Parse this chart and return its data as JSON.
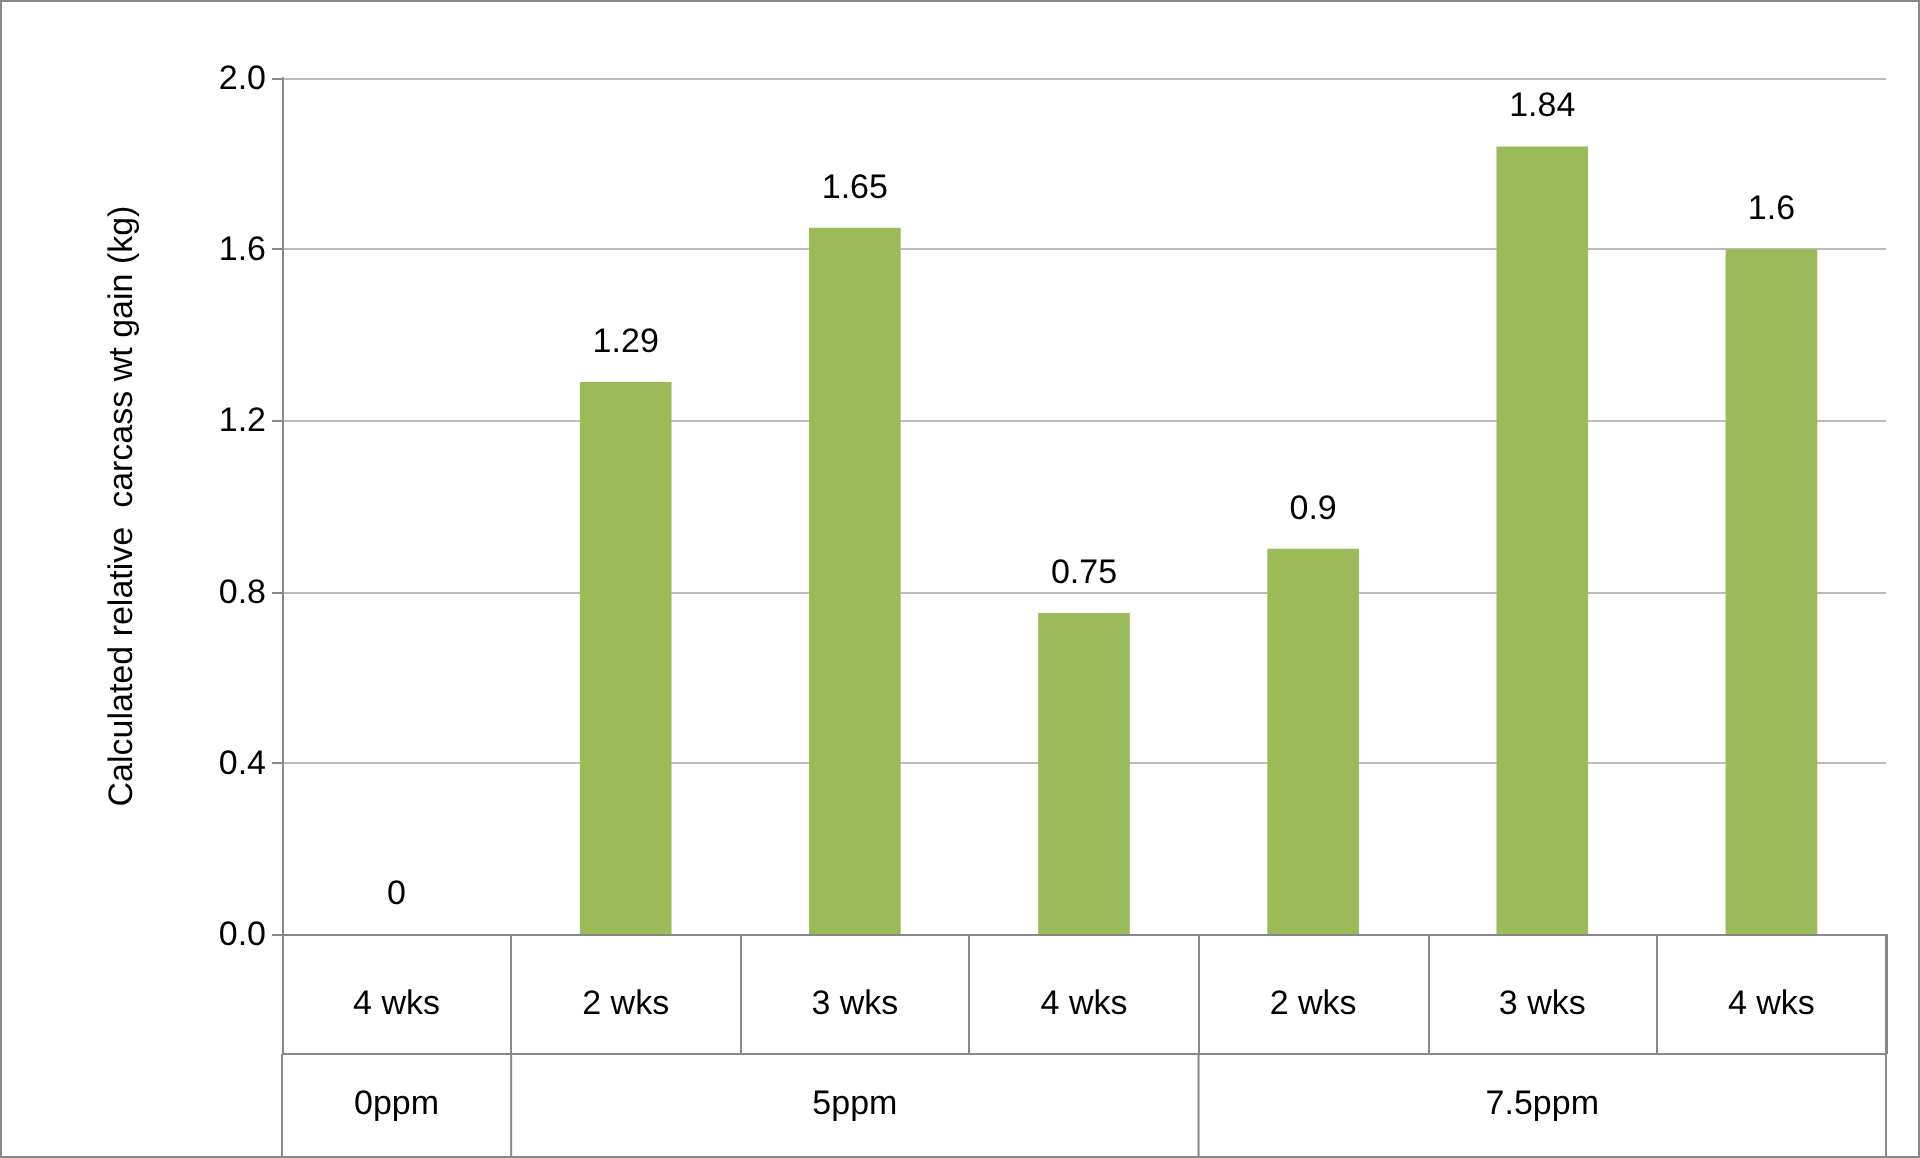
{
  "chart_data": {
    "type": "bar",
    "ylabel": "Calculated relative  carcass wt gain (kg)",
    "categories": [
      "4 wks",
      "2 wks",
      "3 wks",
      "4 wks",
      "2 wks",
      "3 wks",
      "4 wks"
    ],
    "values": [
      0,
      1.29,
      1.65,
      0.75,
      0.9,
      1.84,
      1.6
    ],
    "color": "#9bbb59",
    "data_labels": true,
    "ylim": [
      0,
      2.0
    ],
    "yticks": [
      {
        "value": 0,
        "label": "0.0"
      },
      {
        "value": 0.4,
        "label": "0.4"
      },
      {
        "value": 0.8,
        "label": "0.8"
      },
      {
        "value": 1.2,
        "label": "1.2"
      },
      {
        "value": 1.6,
        "label": "1.6"
      },
      {
        "value": 2.0,
        "label": "2.0"
      }
    ],
    "grid": "y",
    "annotations": [
      "0ppm",
      "5ppm",
      "7.5ppm"
    ]
  }
}
